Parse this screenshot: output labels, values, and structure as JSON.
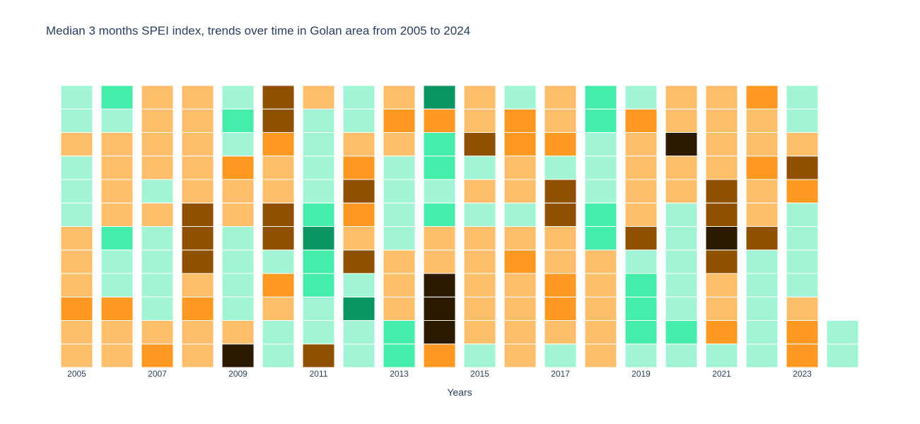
{
  "chart_data": {
    "type": "heatmap",
    "title": "Median 3 months SPEI index, trends over time in Golan area from 2005 to 2024",
    "xlabel": "Years",
    "ylabel": "",
    "years": [
      2005,
      2006,
      2007,
      2008,
      2009,
      2010,
      2011,
      2012,
      2013,
      2014,
      2015,
      2016,
      2017,
      2018,
      2019,
      2020,
      2021,
      2022,
      2023,
      2024
    ],
    "x_tick_labels": [
      "2005",
      "2007",
      "2009",
      "2011",
      "2013",
      "2015",
      "2017",
      "2019",
      "2021",
      "2023"
    ],
    "row_order_note": "",
    "categories": {
      "ED": "#2b1a00",
      "SD": "#8f5100",
      "MD": "#ff9922",
      "NN": "#ffbf6a",
      "MW": "#a2f5d4",
      "VW": "#44eeaa",
      "EW": "#0b9560"
    },
    "cells": [
      [
        "NN",
        "NN",
        "MD",
        "NN",
        "NN",
        "NN",
        "MW",
        "MW",
        "MW",
        "NN",
        "MW",
        "MW"
      ],
      [
        "NN",
        "NN",
        "MD",
        "MW",
        "MW",
        "VW",
        "NN",
        "NN",
        "NN",
        "NN",
        "MW",
        "VW"
      ],
      [
        "MD",
        "NN",
        "MW",
        "MW",
        "MW",
        "MW",
        "NN",
        "MW",
        "NN",
        "NN",
        "NN",
        "NN"
      ],
      [
        "NN",
        "NN",
        "MD",
        "NN",
        "SD",
        "SD",
        "SD",
        "NN",
        "NN",
        "NN",
        "NN",
        "NN"
      ],
      [
        "ED",
        "NN",
        "MW",
        "MW",
        "MW",
        "MW",
        "NN",
        "NN",
        "MD",
        "MW",
        "VW",
        "MW"
      ],
      [
        "MW",
        "MW",
        "NN",
        "MD",
        "MW",
        "SD",
        "SD",
        "NN",
        "NN",
        "MD",
        "SD",
        "SD"
      ],
      [
        "SD",
        "MW",
        "MW",
        "VW",
        "VW",
        "EW",
        "VW",
        "MW",
        "MW",
        "MW",
        "MW",
        "NN"
      ],
      [
        "MW",
        "MW",
        "EW",
        "MW",
        "SD",
        "NN",
        "MD",
        "SD",
        "MD",
        "NN",
        "MW",
        "MW"
      ],
      [
        "VW",
        "VW",
        "NN",
        "NN",
        "NN",
        "MW",
        "MW",
        "MW",
        "MW",
        "NN",
        "MD",
        "NN"
      ],
      [
        "MD",
        "ED",
        "ED",
        "ED",
        "NN",
        "NN",
        "VW",
        "MW",
        "VW",
        "VW",
        "MD",
        "EW"
      ],
      [
        "MW",
        "NN",
        "NN",
        "NN",
        "NN",
        "NN",
        "MW",
        "NN",
        "MW",
        "SD",
        "NN",
        "NN"
      ],
      [
        "NN",
        "NN",
        "NN",
        "NN",
        "MD",
        "NN",
        "MW",
        "NN",
        "NN",
        "MD",
        "MD",
        "MW"
      ],
      [
        "MW",
        "NN",
        "MD",
        "MD",
        "NN",
        "NN",
        "SD",
        "SD",
        "MW",
        "MD",
        "NN",
        "NN"
      ],
      [
        "NN",
        "NN",
        "NN",
        "NN",
        "NN",
        "VW",
        "VW",
        "MW",
        "MW",
        "MW",
        "VW",
        "VW"
      ],
      [
        "MW",
        "VW",
        "VW",
        "VW",
        "MW",
        "SD",
        "NN",
        "NN",
        "NN",
        "NN",
        "MD",
        "MW"
      ],
      [
        "MW",
        "VW",
        "MW",
        "MW",
        "MW",
        "MW",
        "MW",
        "NN",
        "NN",
        "ED",
        "NN",
        "NN"
      ],
      [
        "MW",
        "MD",
        "NN",
        "NN",
        "SD",
        "ED",
        "SD",
        "SD",
        "NN",
        "NN",
        "NN",
        "NN"
      ],
      [
        "MW",
        "MW",
        "MW",
        "MW",
        "MW",
        "SD",
        "NN",
        "NN",
        "MD",
        "NN",
        "NN",
        "MD"
      ],
      [
        "MD",
        "MD",
        "NN",
        "MW",
        "MW",
        "MW",
        "MW",
        "MD",
        "SD",
        "NN",
        "MW",
        "MW"
      ],
      [
        "MW",
        "MW",
        null,
        null,
        null,
        null,
        null,
        null,
        null,
        null,
        null,
        null
      ]
    ]
  }
}
